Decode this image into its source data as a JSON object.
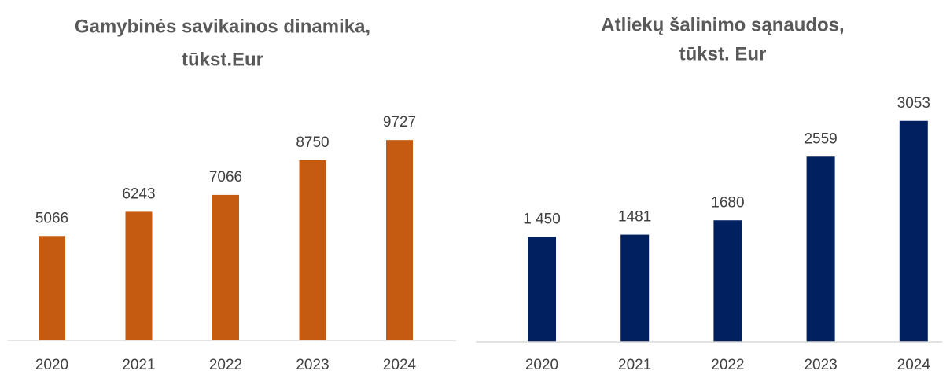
{
  "chart_data": [
    {
      "type": "bar",
      "title": [
        "Gamybinės savikainos dinamika,",
        "tūkst.Eur"
      ],
      "categories": [
        "2020",
        "2021",
        "2022",
        "2023",
        "2024"
      ],
      "values": [
        5066,
        6243,
        7066,
        8750,
        9727
      ],
      "color": "#c55a11",
      "ylim": [
        0,
        10000
      ]
    },
    {
      "type": "bar",
      "title": [
        "Atliekų šalinimo sąnaudos,",
        "tūkst. Eur"
      ],
      "categories": [
        "2020",
        "2021",
        "2022",
        "2023",
        "2024"
      ],
      "values": [
        1450,
        1481,
        1680,
        2559,
        3053
      ],
      "value_labels": [
        "1 450",
        "1481",
        "1680",
        "2559",
        "3053"
      ],
      "color": "#002060",
      "ylim": [
        0,
        3300
      ]
    }
  ]
}
